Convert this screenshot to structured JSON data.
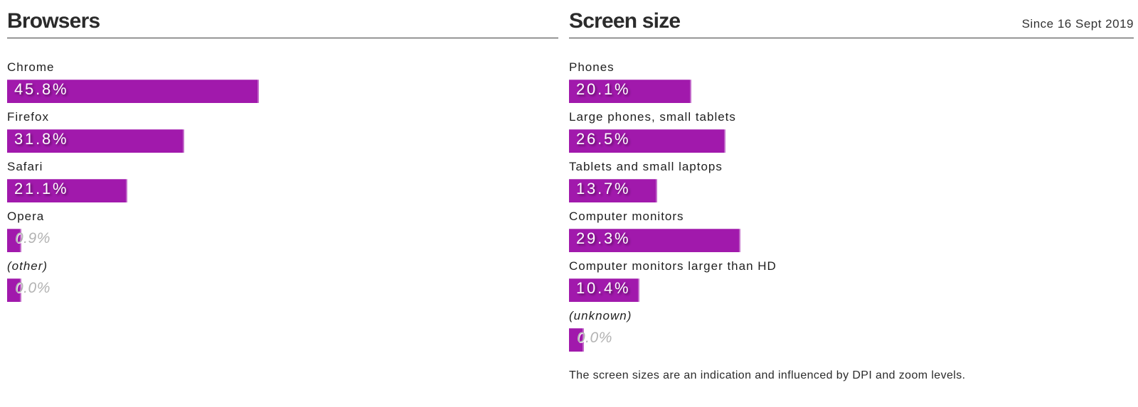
{
  "accent_color": "#a119ac",
  "muted_value_color": "#b3b3b3",
  "chart_data": [
    {
      "type": "bar",
      "orientation": "horizontal",
      "title": "Browsers",
      "unit": "%",
      "categories": [
        "Chrome",
        "Firefox",
        "Safari",
        "Opera",
        "(other)"
      ],
      "values": [
        45.8,
        31.8,
        21.1,
        0.9,
        0.0
      ],
      "value_labels": [
        "45.8%",
        "31.8%",
        "21.1%",
        "0.9%",
        "0.0%"
      ]
    },
    {
      "type": "bar",
      "orientation": "horizontal",
      "title": "Screen size",
      "subtitle": "Since 16 Sept 2019",
      "unit": "%",
      "categories": [
        "Phones",
        "Large phones, small tablets",
        "Tablets and small laptops",
        "Computer monitors",
        "Computer monitors larger than HD",
        "(unknown)"
      ],
      "values": [
        20.1,
        26.5,
        13.7,
        29.3,
        10.4,
        0.0
      ],
      "value_labels": [
        "20.1%",
        "26.5%",
        "13.7%",
        "29.3%",
        "10.4%",
        "0.0%"
      ],
      "footnote": "The screen sizes are an indication and influenced by DPI and zoom levels."
    }
  ]
}
